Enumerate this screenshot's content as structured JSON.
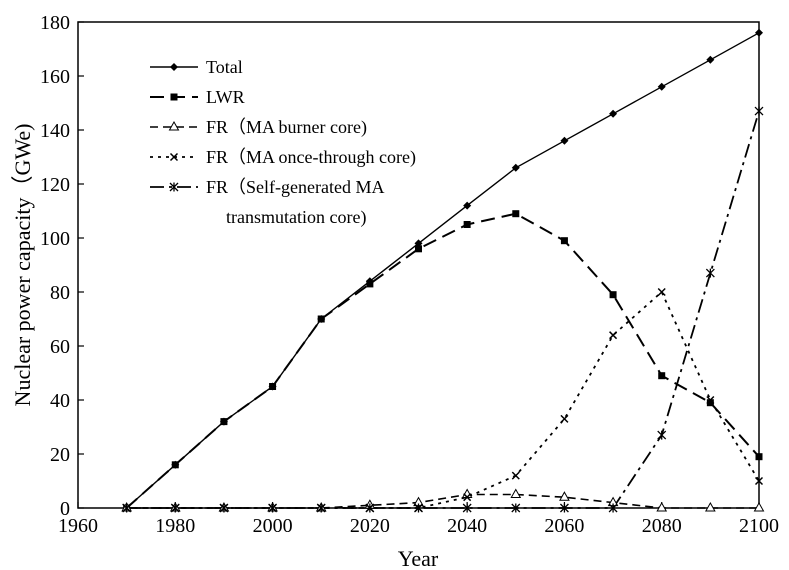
{
  "chart_data": {
    "type": "line",
    "xlabel": "Year",
    "ylabel": "Nuclear power capacity（GWe)",
    "xlim": [
      1960,
      2100
    ],
    "ylim": [
      0,
      180
    ],
    "x_ticks": [
      "1960",
      "1980",
      "2000",
      "2020",
      "2040",
      "2060",
      "2080",
      "2100"
    ],
    "y_ticks": [
      "0",
      "20",
      "40",
      "60",
      "80",
      "100",
      "120",
      "140",
      "160",
      "180"
    ],
    "grid": false,
    "legend_position": "top-left",
    "series": [
      {
        "name": "Total",
        "marker": "diamond",
        "dash": "solid",
        "x": [
          1970,
          1980,
          1990,
          2000,
          2010,
          2020,
          2030,
          2040,
          2050,
          2060,
          2070,
          2080,
          2090,
          2100
        ],
        "values": [
          0,
          16,
          32,
          45,
          70,
          84,
          98,
          112,
          126,
          136,
          146,
          156,
          166,
          176
        ]
      },
      {
        "name": "LWR",
        "marker": "square",
        "dash": "long-dash",
        "x": [
          1970,
          1980,
          1990,
          2000,
          2010,
          2020,
          2030,
          2040,
          2050,
          2060,
          2070,
          2080,
          2090,
          2100
        ],
        "values": [
          0,
          16,
          32,
          45,
          70,
          83,
          96,
          105,
          109,
          99,
          79,
          49,
          39,
          19
        ]
      },
      {
        "name": "FR（MA burner core)",
        "marker": "triangle",
        "dash": "dash",
        "x": [
          1970,
          1980,
          1990,
          2000,
          2010,
          2020,
          2030,
          2040,
          2050,
          2060,
          2070,
          2080,
          2090,
          2100
        ],
        "values": [
          0,
          0,
          0,
          0,
          0,
          1,
          2,
          5,
          5,
          4,
          2,
          0,
          0,
          0
        ]
      },
      {
        "name": "FR（MA once-through core)",
        "marker": "x",
        "dash": "dot",
        "x": [
          1970,
          1980,
          1990,
          2000,
          2010,
          2020,
          2030,
          2040,
          2050,
          2060,
          2070,
          2080,
          2090,
          2100
        ],
        "values": [
          0,
          0,
          0,
          0,
          0,
          0,
          0,
          4,
          12,
          33,
          64,
          80,
          40,
          10
        ]
      },
      {
        "name": "FR（Self-generated MA",
        "name_line2": "transmutation core)",
        "marker": "star",
        "dash": "dash-dot",
        "x": [
          1970,
          1980,
          1990,
          2000,
          2010,
          2020,
          2030,
          2040,
          2050,
          2060,
          2070,
          2080,
          2090,
          2100
        ],
        "values": [
          0,
          0,
          0,
          0,
          0,
          0,
          0,
          0,
          0,
          0,
          0,
          27,
          87,
          147
        ]
      }
    ]
  }
}
